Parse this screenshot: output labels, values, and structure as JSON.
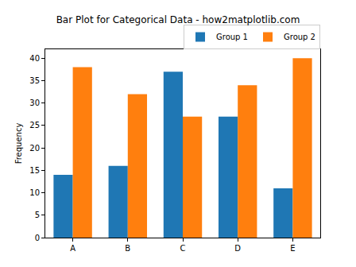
{
  "chart_data": {
    "type": "bar",
    "title": "Bar Plot for Categorical Data - how2matplotlib.com",
    "y_label": "Frequency",
    "categories": [
      "A",
      "B",
      "C",
      "D",
      "E"
    ],
    "series": [
      {
        "name": "Group 1",
        "color": "#1f77b4",
        "values": [
          14,
          16,
          37,
          27,
          11
        ]
      },
      {
        "name": "Group 2",
        "color": "#ff7f0e",
        "values": [
          38,
          32,
          27,
          34,
          40
        ]
      }
    ],
    "ylim": [
      0,
      42
    ],
    "yticks": [
      0,
      5,
      10,
      15,
      20,
      25,
      30,
      35,
      40
    ],
    "grid": false,
    "legend": "upper right"
  }
}
